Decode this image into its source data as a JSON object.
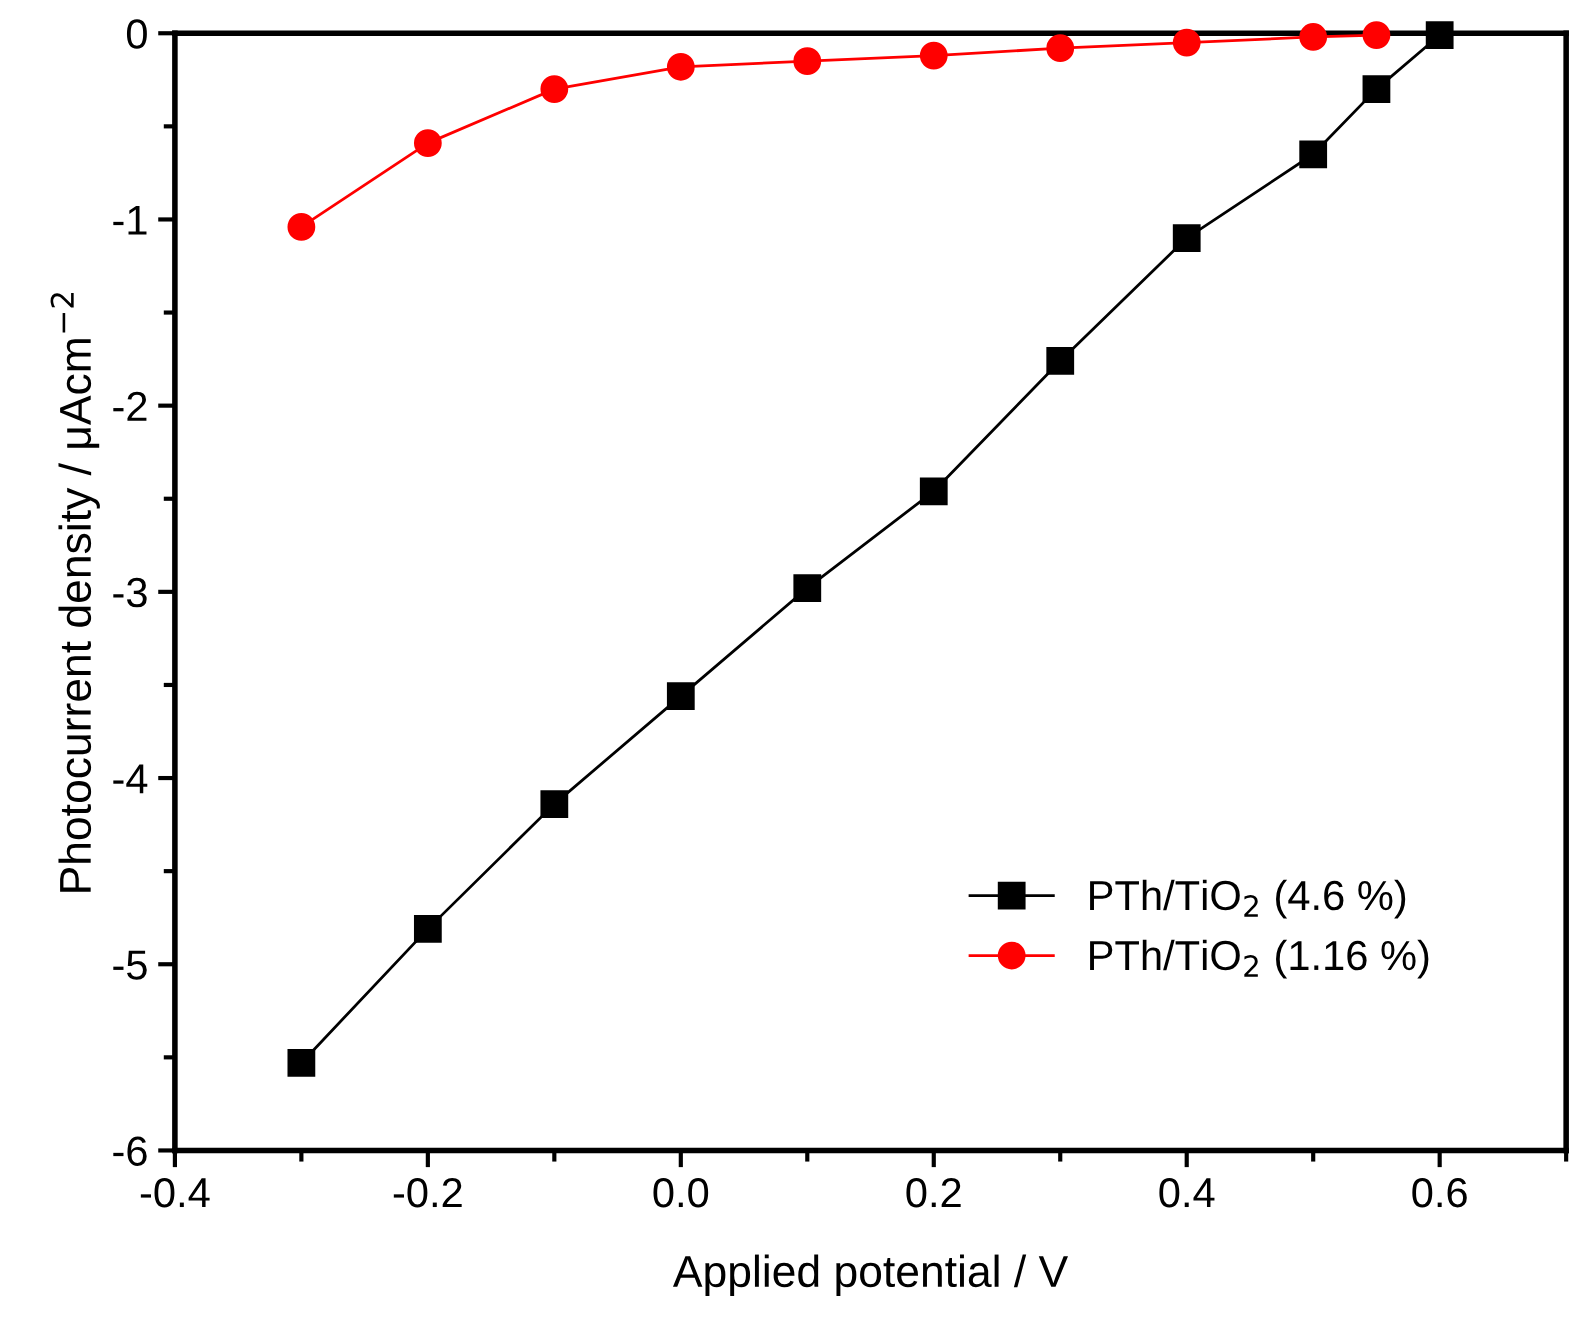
{
  "chart_data": {
    "type": "line",
    "xlabel": "Applied potential / V",
    "ylabel": "Photocurrent density / μAcm$^{−2}$",
    "x": [
      -0.3,
      -0.2,
      -0.1,
      0.0,
      0.1,
      0.2,
      0.3,
      0.4,
      0.5,
      0.55,
      0.6
    ],
    "series": [
      {
        "name": "PTh/TiO$_{2}$ (4.6 %)",
        "color": "#000000",
        "marker": "square",
        "values": [
          -5.53,
          -4.81,
          -4.14,
          -3.56,
          -2.98,
          -2.46,
          -1.76,
          -1.1,
          -0.65,
          -0.3,
          -0.01
        ]
      },
      {
        "name": "PTh/TiO$_{2}$ (1.16 %)",
        "color": "#ff0000",
        "marker": "circle",
        "x": [
          -0.3,
          -0.2,
          -0.1,
          0.0,
          0.1,
          0.2,
          0.3,
          0.4,
          0.5,
          0.55
        ],
        "values": [
          -1.04,
          -0.59,
          -0.3,
          -0.18,
          -0.15,
          -0.12,
          -0.08,
          -0.05,
          -0.02,
          -0.01
        ]
      }
    ],
    "xlim": [
      -0.4,
      0.7
    ],
    "xticks": [
      {
        "value": -0.4,
        "label": "-0.4"
      },
      {
        "value": -0.2,
        "label": "-0.2"
      },
      {
        "value": 0.0,
        "label": "0.0"
      },
      {
        "value": 0.2,
        "label": "0.2"
      },
      {
        "value": 0.4,
        "label": "0.4"
      },
      {
        "value": 0.6,
        "label": "0.6"
      }
    ],
    "ylim": [
      -6,
      0
    ],
    "yticks": [
      {
        "value": -6,
        "label": "-6"
      },
      {
        "value": -5,
        "label": "-5"
      },
      {
        "value": -4,
        "label": "-4"
      },
      {
        "value": -3,
        "label": "-3"
      },
      {
        "value": -2,
        "label": "-2"
      },
      {
        "value": -1,
        "label": "-1"
      },
      0
    ],
    "grid": false,
    "legend": "bottom right",
    "line_style": "solid"
  }
}
